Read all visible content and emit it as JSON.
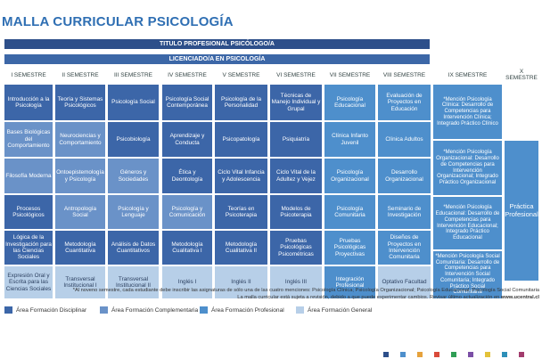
{
  "page": {
    "title": "MALLA CURRICULAR PSICOLOGÍA",
    "title_bar": "TITULO PROFESIONAL PSICÓLOGO/A",
    "license_bar": "LICENCIADO/A EN PSICOLOGÍA"
  },
  "semesters": [
    "I SEMESTRE",
    "II SEMESTRE",
    "III SEMESTRE",
    "IV SEMESTRE",
    "V SEMESTRE",
    "VI SEMESTRE",
    "VII SEMESTRE",
    "VIII SEMESTRE",
    "IX SEMESTRE",
    "X SEMESTRE"
  ],
  "grid": [
    [
      "Introducción a la Psicología",
      "Teoría y Sistemas Psicológicos",
      "Psicología Social",
      "Psicología Social Contemporánea",
      "Psicología de la Personalidad",
      "Técnicas de Manejo Individual y Grupal",
      "Psicología Educacional",
      "Evaluación de Proyectos en Educación"
    ],
    [
      "Bases Biológicas del Comportamiento",
      "Neurociencias y Comportamiento",
      "Psicobiología",
      "Aprendizaje y Conducta",
      "Psicopatología",
      "Psiquiatría",
      "Clínica Infanto Juvenil",
      "Clínica Adultos"
    ],
    [
      "Filosofía Moderna",
      "Ontoepistemología y Psicología",
      "Géneros y Sociedades",
      "Ética y Deontología",
      "Ciclo Vital Infancia y Adolescencia",
      "Ciclo Vital de la Adultez y Vejez",
      "Psicología Organizacional",
      "Desarrollo Organizacional"
    ],
    [
      "Procesos Psicológicos",
      "Antropología Social",
      "Psicología y Lenguaje",
      "Psicología y Comunicación",
      "Teorías en Psicoterapia",
      "Modelos de Psicoterapia",
      "Psicología Comunitaria",
      "Seminario de Investigación"
    ],
    [
      "Lógica de la Investigación para las Ciencias Sociales",
      "Metodología Cuantitativa",
      "Análisis de Datos Cuantitativos",
      "Metodología Cualitativa I",
      "Metodología Cualitativa II",
      "Pruebas Psicológicas Psicométricas",
      "Pruebas Psicológicas Proyectivas",
      "Diseños de Proyectos en Intervención Comunitaria"
    ],
    [
      "Expresión Oral y Escrita para las Ciencias Sociales",
      "Transversal Institucional I",
      "Transversal Institucional II",
      "Inglés I",
      "Inglés II",
      "Inglés III",
      "Integración Profesional",
      "Optativo Facultad"
    ]
  ],
  "grid_types": [
    [
      "d",
      "d",
      "d",
      "d",
      "d",
      "d",
      "p",
      "p"
    ],
    [
      "c",
      "c",
      "d",
      "d",
      "d",
      "d",
      "p",
      "p"
    ],
    [
      "c",
      "c",
      "c",
      "d",
      "d",
      "d",
      "p",
      "p"
    ],
    [
      "d",
      "c",
      "c",
      "c",
      "d",
      "d",
      "p",
      "p"
    ],
    [
      "d",
      "d",
      "d",
      "d",
      "d",
      "d",
      "p",
      "p"
    ],
    [
      "g",
      "g",
      "g",
      "g",
      "g",
      "g",
      "p",
      "g"
    ]
  ],
  "ix_semester": [
    "*Mención Psicología Clínica: Desarrollo de Competencias para Intervención Clínica; Integrado Práctico Clínico",
    "*Mención Psicología Organizacional: Desarrollo de Competencias para Intervención Organizacional; Integrado Práctico Organizacional",
    "*Mención Psicología Educacional: Desarrollo de Competencias para Intervención Educacional; Integrado Práctico Educacional",
    "*Mención Psicología Social Comunitaria: Desarrollo de Competencias para Intervención Social Comunitaria; Integrado Práctico Social Comunitaria"
  ],
  "x_semester": "Práctica Profesional",
  "footnote": {
    "line1": "*Al noveno semestre, cada estudiante debe inscribir las asignaturas de sólo una de las cuatro menciones: Psicología Clínica; Psicología Organizacional; Psicología Educacional; Psicología Social Comunitaria",
    "line2": "La malla curricular está sujeta a revisión, debido a que puede experimentar cambios. Revisar último actualización en",
    "url": "www.ucentral.cl"
  },
  "legend": [
    {
      "label": "Área Formación Disciplinar",
      "color": "#3c66a8"
    },
    {
      "label": "Área Formación Complementaria",
      "color": "#6a92c8"
    },
    {
      "label": "Área Formación Profesional",
      "color": "#4e8fcc"
    },
    {
      "label": "Área Formación General",
      "color": "#b7cfe8"
    }
  ],
  "colors": {
    "disciplinar": "#3c66a8",
    "complementaria": "#6a92c8",
    "profesional": "#4e8fcc",
    "general": "#b7cfe8",
    "title": "#2f6fb3",
    "bar": "#2d4f8a"
  },
  "dots": [
    "#2d4f8a",
    "#4e8fcc",
    "#e6a23c",
    "#d94a3a",
    "#2f9e55",
    "#7b4fa6",
    "#e3c23a",
    "#2d8fb8",
    "#a23c6d"
  ]
}
